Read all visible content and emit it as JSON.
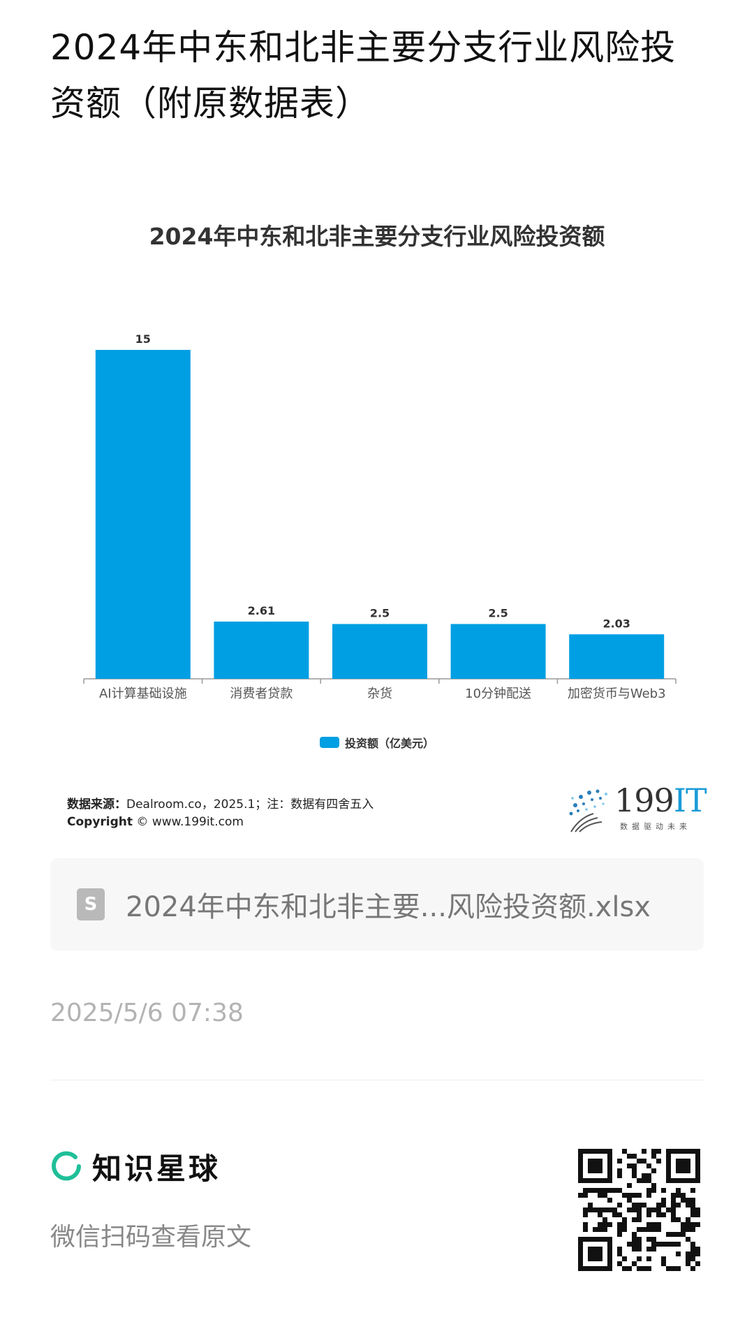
{
  "page": {
    "title": "2024年中东和北非主要分支行业风险投资额（附原数据表）"
  },
  "chart_data": {
    "type": "bar",
    "title": "2024年中东和北非主要分支行业风险投资额",
    "categories": [
      "AI计算基础设施",
      "消费者贷款",
      "杂货",
      "10分钟配送",
      "加密货币与Web3"
    ],
    "series": [
      {
        "name": "投资额（亿美元）",
        "values": [
          15,
          2.61,
          2.5,
          2.5,
          2.03
        ],
        "data_labels": [
          "15",
          "2.61",
          "2.5",
          "2.5",
          "2.03"
        ],
        "color": "#009FE3"
      }
    ],
    "xlabel": "",
    "ylabel": "",
    "ylim": [
      0,
      15
    ],
    "grid": false,
    "legend": "bottom-center"
  },
  "footer": {
    "source_label": "数据来源：",
    "source_text": "Dealroom.co，2025.1；注：数据有四舍五入",
    "copyright_label": "Copyright",
    "copyright_text": " © www.199it.com",
    "logo_text": "199",
    "logo_text_accent": "IT",
    "logo_subtitle": "数据驱动未来"
  },
  "file": {
    "icon": "spreadsheet-file-icon",
    "icon_letter": "S",
    "name": "2024年中东和北非主要...风险投资额.xlsx"
  },
  "timestamp": "2025/5/6 07:38",
  "brand": {
    "name": "知识星球",
    "hint": "微信扫码查看原文",
    "accent": "#1fbf99"
  }
}
